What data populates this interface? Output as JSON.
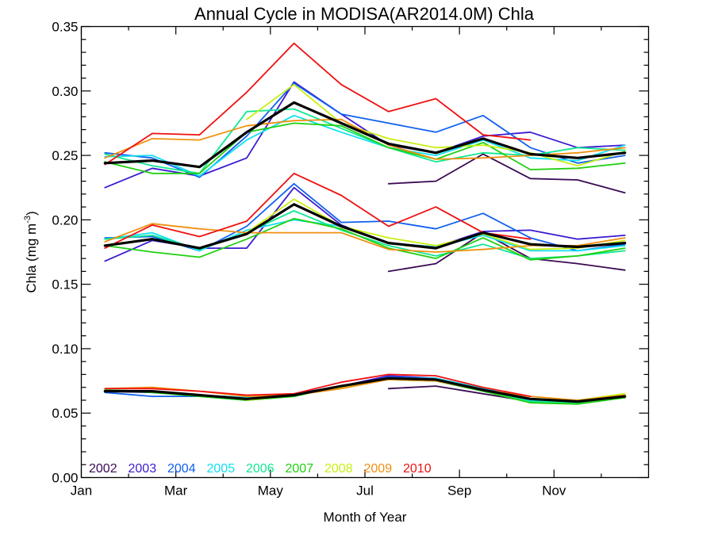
{
  "chart_data": {
    "type": "line",
    "title": "Annual Cycle in MODISA(AR2014.0M) Chla",
    "xlabel": "Month of Year",
    "ylabel_prefix": "Chla (mg m",
    "ylabel_sup": "-3",
    "ylabel_suffix": ")",
    "xlim": [
      1,
      13
    ],
    "ylim": [
      0,
      0.35
    ],
    "x_ticks": [
      1,
      3,
      5,
      7,
      9,
      11
    ],
    "x_tick_labels": [
      "Jan",
      "Mar",
      "May",
      "Jul",
      "Sep",
      "Nov"
    ],
    "x_minor_ticks": [
      2,
      4,
      6,
      8,
      10,
      12
    ],
    "y_ticks": [
      0,
      0.05,
      0.1,
      0.15,
      0.2,
      0.25,
      0.3,
      0.35
    ],
    "y_tick_labels": [
      "0.00",
      "0.05",
      "0.10",
      "0.15",
      "0.20",
      "0.25",
      "0.30",
      "0.35"
    ],
    "months": [
      1.5,
      2.5,
      3.5,
      4.5,
      5.5,
      6.5,
      7.5,
      8.5,
      9.5,
      10.5,
      11.5,
      12.5
    ],
    "legend": {
      "position": "bottom-left"
    },
    "grid": false,
    "series": [
      {
        "name": "2002",
        "color": "#3a0a52",
        "upper": [
          null,
          null,
          null,
          null,
          null,
          null,
          0.228,
          0.23,
          0.251,
          0.232,
          0.231,
          0.221
        ],
        "middle": [
          null,
          null,
          null,
          null,
          null,
          null,
          0.16,
          0.166,
          0.19,
          0.17,
          0.166,
          0.161
        ],
        "lower": [
          null,
          null,
          null,
          null,
          null,
          null,
          0.069,
          0.071,
          0.065,
          0.059,
          0.058,
          0.062
        ]
      },
      {
        "name": "2003",
        "color": "#3c1ad2",
        "upper": [
          0.225,
          0.24,
          0.234,
          0.248,
          0.307,
          0.282,
          0.258,
          0.252,
          0.265,
          0.268,
          0.256,
          0.258
        ],
        "middle": [
          0.168,
          0.184,
          0.178,
          0.178,
          0.225,
          0.196,
          0.182,
          0.179,
          0.191,
          0.192,
          0.185,
          0.188
        ],
        "lower": [
          0.067,
          0.066,
          0.064,
          0.062,
          0.065,
          0.071,
          0.079,
          0.077,
          0.068,
          0.061,
          0.059,
          0.062
        ]
      },
      {
        "name": "2004",
        "color": "#1060f0",
        "upper": [
          0.252,
          0.248,
          0.233,
          0.265,
          0.306,
          0.282,
          0.275,
          0.268,
          0.281,
          0.256,
          0.244,
          0.25
        ],
        "middle": [
          0.186,
          0.187,
          0.176,
          0.195,
          0.228,
          0.198,
          0.199,
          0.193,
          0.205,
          0.186,
          0.176,
          0.181
        ],
        "lower": [
          0.066,
          0.063,
          0.063,
          0.061,
          0.064,
          0.07,
          0.078,
          0.077,
          0.069,
          0.061,
          0.059,
          0.063
        ]
      },
      {
        "name": "2005",
        "color": "#10e0f0",
        "upper": [
          0.249,
          0.25,
          0.234,
          0.262,
          0.281,
          0.268,
          0.256,
          0.25,
          0.262,
          0.248,
          0.246,
          0.258
        ],
        "middle": [
          0.185,
          0.19,
          0.176,
          0.192,
          0.2,
          0.195,
          0.182,
          0.179,
          0.188,
          0.176,
          0.176,
          0.18
        ],
        "lower": [
          0.067,
          0.067,
          0.064,
          0.062,
          0.064,
          0.071,
          0.077,
          0.077,
          0.069,
          0.06,
          0.058,
          0.062
        ]
      },
      {
        "name": "2006",
        "color": "#10e890",
        "upper": [
          0.251,
          0.242,
          0.236,
          0.284,
          0.286,
          0.271,
          0.256,
          0.245,
          0.252,
          0.25,
          0.256,
          0.254
        ],
        "middle": [
          0.185,
          0.188,
          0.177,
          0.19,
          0.207,
          0.192,
          0.18,
          0.172,
          0.181,
          0.17,
          0.172,
          0.176
        ],
        "lower": [
          0.068,
          0.067,
          0.063,
          0.06,
          0.063,
          0.071,
          0.076,
          0.075,
          0.068,
          0.059,
          0.058,
          0.062
        ]
      },
      {
        "name": "2007",
        "color": "#20d010",
        "upper": [
          0.245,
          0.236,
          0.236,
          0.268,
          0.275,
          0.273,
          0.256,
          0.247,
          0.26,
          0.239,
          0.24,
          0.244
        ],
        "middle": [
          0.18,
          0.175,
          0.171,
          0.185,
          0.201,
          0.193,
          0.178,
          0.17,
          0.186,
          0.169,
          0.172,
          0.178
        ],
        "lower": [
          0.068,
          0.066,
          0.063,
          0.06,
          0.063,
          0.071,
          0.076,
          0.075,
          0.067,
          0.058,
          0.057,
          0.062
        ]
      },
      {
        "name": "2008",
        "color": "#c8f010",
        "upper": [
          null,
          null,
          null,
          0.278,
          0.305,
          0.275,
          0.263,
          0.256,
          0.258,
          0.252,
          0.242,
          0.253
        ],
        "middle": [
          null,
          null,
          null,
          0.19,
          0.216,
          0.195,
          0.186,
          0.18,
          0.189,
          0.177,
          0.178,
          0.184
        ],
        "lower": [
          null,
          null,
          null,
          0.06,
          0.064,
          0.07,
          0.077,
          0.076,
          0.068,
          0.061,
          0.06,
          0.065
        ]
      },
      {
        "name": "2009",
        "color": "#f09010",
        "upper": [
          0.248,
          0.263,
          0.262,
          0.273,
          0.277,
          0.278,
          0.258,
          0.247,
          0.248,
          0.25,
          0.252,
          0.256
        ],
        "middle": [
          0.183,
          0.197,
          0.193,
          0.19,
          0.19,
          0.19,
          0.177,
          0.175,
          0.177,
          0.18,
          0.18,
          0.186
        ],
        "lower": [
          0.069,
          0.07,
          0.067,
          0.063,
          0.064,
          0.069,
          0.076,
          0.075,
          0.068,
          0.063,
          0.06,
          0.064
        ]
      },
      {
        "name": "2010",
        "color": "#f01010",
        "upper": [
          0.243,
          0.267,
          0.266,
          0.299,
          0.337,
          0.305,
          0.284,
          0.294,
          0.266,
          0.262,
          null,
          null
        ],
        "middle": [
          0.178,
          0.196,
          0.187,
          0.199,
          0.236,
          0.219,
          0.195,
          0.21,
          0.19,
          0.185,
          null,
          null
        ],
        "lower": [
          0.069,
          0.069,
          0.067,
          0.064,
          0.065,
          0.074,
          0.08,
          0.079,
          0.07,
          0.063,
          null,
          null
        ]
      }
    ],
    "climatology": {
      "color": "#000000",
      "upper": [
        0.244,
        0.246,
        0.241,
        0.268,
        0.291,
        0.275,
        0.259,
        0.252,
        0.263,
        0.251,
        0.248,
        0.252
      ],
      "middle": [
        0.18,
        0.185,
        0.178,
        0.189,
        0.212,
        0.195,
        0.182,
        0.178,
        0.19,
        0.181,
        0.179,
        0.182
      ],
      "lower": [
        0.067,
        0.067,
        0.064,
        0.061,
        0.064,
        0.071,
        0.077,
        0.076,
        0.068,
        0.061,
        0.059,
        0.063
      ]
    }
  }
}
